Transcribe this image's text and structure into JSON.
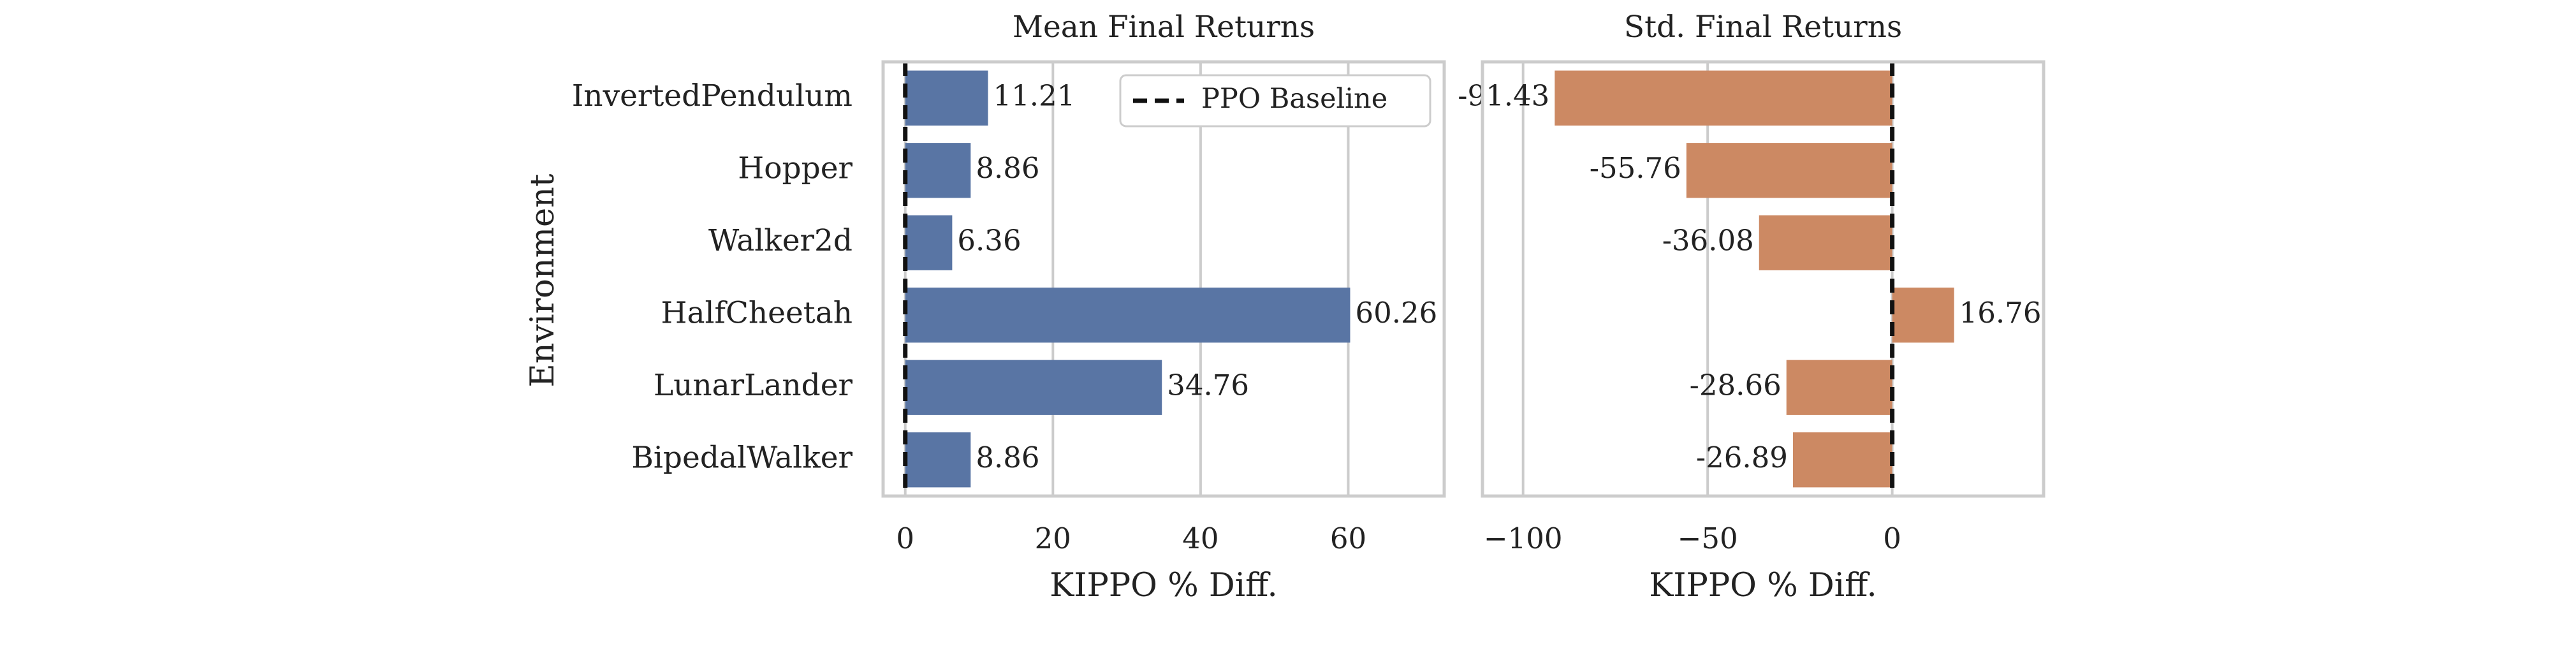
{
  "y_axis_label": "Environment",
  "chart_data": [
    {
      "type": "bar",
      "orientation": "horizontal",
      "title": "Mean Final Returns",
      "xlabel": "KIPPO % Diff.",
      "categories": [
        "InvertedPendulum",
        "Hopper",
        "Walker2d",
        "HalfCheetah",
        "LunarLander",
        "BipedalWalker"
      ],
      "values": [
        11.21,
        8.86,
        6.36,
        60.26,
        34.76,
        8.86
      ],
      "value_labels": [
        "11.21",
        "8.86",
        "6.36",
        "60.26",
        "34.76",
        "8.86"
      ],
      "xlim": [
        -3,
        73
      ],
      "xticks": [
        0,
        20,
        40,
        60
      ],
      "xtick_labels": [
        "0",
        "20",
        "40",
        "60"
      ],
      "bar_color": "#5975a4",
      "grid": true,
      "baseline": 0,
      "legend": {
        "position": "top-right",
        "entries": [
          "PPO Baseline"
        ]
      }
    },
    {
      "type": "bar",
      "orientation": "horizontal",
      "title": "Std. Final Returns",
      "xlabel": "KIPPO % Diff.",
      "categories": [
        "InvertedPendulum",
        "Hopper",
        "Walker2d",
        "HalfCheetah",
        "LunarLander",
        "BipedalWalker"
      ],
      "values": [
        -91.43,
        -55.76,
        -36.08,
        16.76,
        -28.66,
        -26.89
      ],
      "value_labels": [
        "-91.43",
        "-55.76",
        "-36.08",
        "16.76",
        "-28.66",
        "-26.89"
      ],
      "xlim": [
        -111,
        41
      ],
      "xticks": [
        -100,
        -50,
        0
      ],
      "xtick_labels": [
        "−100",
        "−50",
        "0"
      ],
      "bar_color": "#cc8963",
      "grid": true,
      "baseline": 0
    }
  ]
}
